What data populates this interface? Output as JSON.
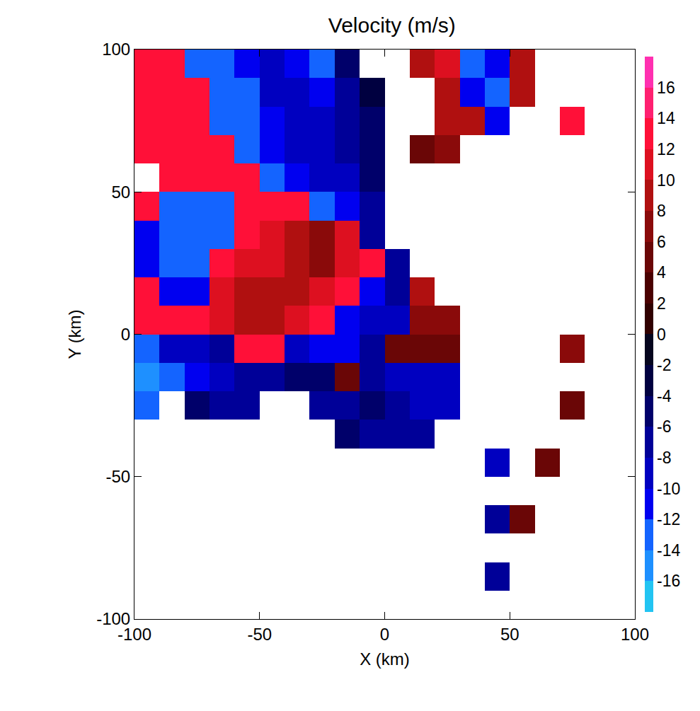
{
  "chart_data": {
    "type": "heatmap",
    "title": "Velocity (m/s)",
    "x_label": "X (km)",
    "y_label": "Y (km)",
    "x": [
      -95,
      -85,
      -75,
      -65,
      -55,
      -45,
      -35,
      -25,
      -15,
      -5,
      5,
      15,
      25,
      35,
      45,
      55,
      65,
      75,
      85,
      95
    ],
    "y": [
      95,
      85,
      75,
      65,
      55,
      45,
      35,
      25,
      15,
      5,
      -5,
      -15,
      -25,
      -35,
      -45,
      -55,
      -65,
      -75,
      -85,
      -95
    ],
    "z": [
      [
        13,
        12,
        -13,
        -14,
        -12,
        -10,
        -12,
        -14,
        -6,
        null,
        null,
        8,
        10,
        -13,
        -12,
        8,
        null,
        null,
        null,
        null
      ],
      [
        13,
        13,
        12,
        -14,
        -13,
        -10,
        -10,
        -12,
        -8,
        -4,
        null,
        null,
        9,
        -12,
        -13,
        8,
        null,
        null,
        null,
        null
      ],
      [
        12,
        13,
        13,
        -14,
        -14,
        -12,
        -10,
        -10,
        -8,
        -5,
        null,
        null,
        8,
        9,
        -12,
        null,
        null,
        12,
        null,
        null
      ],
      [
        13,
        12,
        12,
        13,
        -14,
        -12,
        -10,
        -10,
        -8,
        -6,
        null,
        5,
        6,
        null,
        null,
        null,
        null,
        null,
        null,
        null
      ],
      [
        null,
        13,
        12,
        12,
        13,
        -14,
        -12,
        -10,
        -9,
        -6,
        null,
        null,
        null,
        null,
        null,
        null,
        null,
        null,
        null,
        null
      ],
      [
        12,
        -14,
        -14,
        -13,
        12,
        12,
        12,
        -14,
        -12,
        -8,
        null,
        null,
        null,
        null,
        null,
        null,
        null,
        null,
        null,
        null
      ],
      [
        -12,
        -14,
        -14,
        -13,
        12,
        11,
        9,
        6,
        11,
        -8,
        null,
        null,
        null,
        null,
        null,
        null,
        null,
        null,
        null,
        null
      ],
      [
        -12,
        -14,
        -14,
        12,
        11,
        10,
        8,
        6,
        10,
        12,
        -8,
        null,
        null,
        null,
        null,
        null,
        null,
        null,
        null,
        null
      ],
      [
        13,
        -12,
        -12,
        11,
        8,
        8,
        9,
        11,
        12,
        -12,
        -8,
        9,
        null,
        null,
        null,
        null,
        null,
        null,
        null,
        null
      ],
      [
        13,
        12,
        12,
        10,
        8,
        9,
        11,
        12,
        -12,
        -10,
        -9,
        7,
        6,
        null,
        null,
        null,
        null,
        null,
        null,
        null
      ],
      [
        -14,
        -10,
        -10,
        -8,
        13,
        12,
        -10,
        -12,
        -11,
        -8,
        4,
        5,
        4,
        null,
        null,
        null,
        null,
        6,
        null,
        null
      ],
      [
        -15,
        -14,
        -12,
        -10,
        -8,
        -8,
        -6,
        -6,
        4,
        -8,
        -9,
        -10,
        -10,
        null,
        null,
        null,
        null,
        null,
        null,
        null
      ],
      [
        -14,
        null,
        -6,
        -8,
        -7,
        null,
        null,
        -8,
        -8,
        -6,
        -8,
        -9,
        -10,
        null,
        null,
        null,
        null,
        5,
        null,
        null
      ],
      [
        null,
        null,
        null,
        null,
        null,
        null,
        null,
        null,
        -6,
        -7,
        -8,
        -7,
        null,
        null,
        null,
        null,
        null,
        null,
        null,
        null
      ],
      [
        null,
        null,
        null,
        null,
        null,
        null,
        null,
        null,
        null,
        null,
        null,
        null,
        null,
        null,
        -9,
        null,
        5,
        null,
        null,
        null
      ],
      [
        null,
        null,
        null,
        null,
        null,
        null,
        null,
        null,
        null,
        null,
        null,
        null,
        null,
        null,
        null,
        null,
        null,
        null,
        null,
        null
      ],
      [
        null,
        null,
        null,
        null,
        null,
        null,
        null,
        null,
        null,
        null,
        null,
        null,
        null,
        null,
        -8,
        4,
        null,
        null,
        null,
        null
      ],
      [
        null,
        null,
        null,
        null,
        null,
        null,
        null,
        null,
        null,
        null,
        null,
        null,
        null,
        null,
        null,
        null,
        null,
        null,
        null,
        null
      ],
      [
        null,
        null,
        null,
        null,
        null,
        null,
        null,
        null,
        null,
        null,
        null,
        null,
        null,
        null,
        -8,
        null,
        null,
        null,
        null,
        null
      ],
      [
        null,
        null,
        null,
        null,
        null,
        null,
        null,
        null,
        null,
        null,
        null,
        null,
        null,
        null,
        null,
        null,
        null,
        null,
        null,
        null
      ]
    ],
    "xlim": [
      -100,
      100
    ],
    "ylim": [
      -100,
      100
    ],
    "xticks": [
      -100,
      -50,
      0,
      50,
      100
    ],
    "yticks": [
      -100,
      -50,
      0,
      50,
      100
    ],
    "colorbar": {
      "range": [
        -18,
        18
      ],
      "ticks": [
        -16,
        -14,
        -12,
        -10,
        -8,
        -6,
        -4,
        -2,
        0,
        2,
        4,
        6,
        8,
        10,
        12,
        14,
        16
      ]
    }
  }
}
